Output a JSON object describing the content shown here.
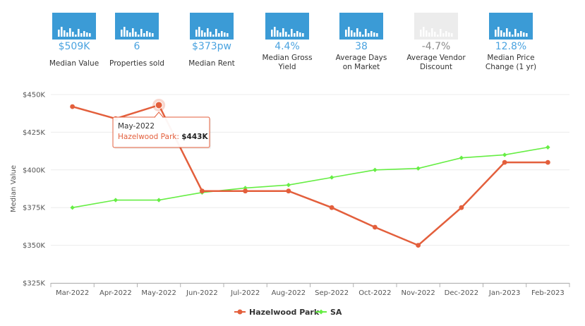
{
  "stats": [
    {
      "value": "$509K",
      "label": "Median Value",
      "faded": false
    },
    {
      "value": "6",
      "label": "Properties sold",
      "faded": false
    },
    {
      "value": "$373pw",
      "label": "Median Rent",
      "faded": false
    },
    {
      "value": "4.4%",
      "label_line1": "Median Gross",
      "label_line2": "Yield",
      "faded": false
    },
    {
      "value": "38",
      "label_line1": "Average Days",
      "label_line2": "on Market",
      "faded": false
    },
    {
      "value": "-4.7%",
      "label_line1": "Average Vendor",
      "label_line2": "Discount",
      "faded": true
    },
    {
      "value": "12.8%",
      "label_line1": "Median Price",
      "label_line2": "Change (1 yr)",
      "faded": false
    }
  ],
  "colors": {
    "hazelwood": "#e35f3c",
    "sa": "#66ee44",
    "tile": "#3b9bd6",
    "value_text": "#4aa3e0"
  },
  "chart_data": {
    "type": "line",
    "ylabel": "Median Value",
    "ylim": [
      325,
      450
    ],
    "yticks": [
      325,
      350,
      375,
      400,
      425,
      450
    ],
    "ytick_labels": [
      "$325K",
      "$350K",
      "$375K",
      "$400K",
      "$425K",
      "$450K"
    ],
    "categories": [
      "Mar-2022",
      "Apr-2022",
      "May-2022",
      "Jun-2022",
      "Jul-2022",
      "Aug-2022",
      "Sep-2022",
      "Oct-2022",
      "Nov-2022",
      "Dec-2022",
      "Jan-2023",
      "Feb-2023"
    ],
    "series": [
      {
        "name": "Hazelwood Park",
        "values": [
          442,
          434,
          443,
          386,
          386,
          386,
          375,
          362,
          350,
          375,
          405,
          405
        ]
      },
      {
        "name": "SA",
        "values": [
          375,
          380,
          380,
          385,
          388,
          390,
          395,
          400,
          401,
          408,
          410,
          415
        ]
      }
    ],
    "tooltip": {
      "title": "May-2022",
      "series": "Hazelwood Park",
      "value": "$443K",
      "index": 2
    },
    "legend": "bottom-center"
  }
}
